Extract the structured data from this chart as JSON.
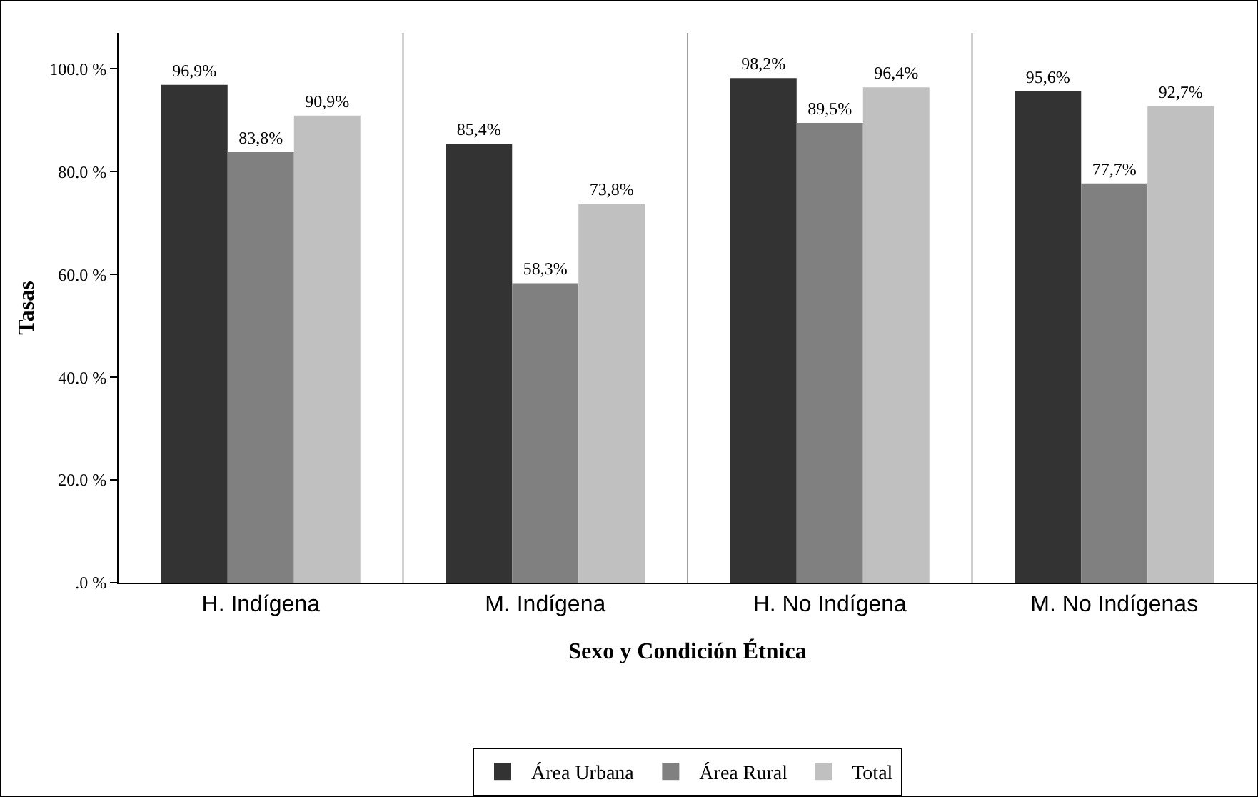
{
  "chart_data": {
    "type": "bar",
    "xlabel": "Sexo y Condición Étnica",
    "ylabel": "Tasas",
    "categories": [
      "H. Indígena",
      "M. Indígena",
      "H. No Indígena",
      "M. No Indígenas"
    ],
    "series": [
      {
        "name": "Área Urbana",
        "color": "#333333",
        "values": [
          96.9,
          85.4,
          98.2,
          95.6
        ],
        "value_labels": [
          "96,9%",
          "85,4%",
          "98,2%",
          "95,6%"
        ]
      },
      {
        "name": "Área Rural",
        "color": "#808080",
        "values": [
          83.8,
          58.3,
          89.5,
          77.7
        ],
        "value_labels": [
          "83,8%",
          "58,3%",
          "89,5%",
          "77,7%"
        ]
      },
      {
        "name": "Total",
        "color": "#c0c0c0",
        "values": [
          90.9,
          73.8,
          96.4,
          92.7
        ],
        "value_labels": [
          "90,9%",
          "73,8%",
          "96,4%",
          "92,7%"
        ]
      }
    ],
    "ylim": [
      0,
      107
    ],
    "yticks": [
      {
        "value": 0,
        "label": ".0 %"
      },
      {
        "value": 20,
        "label": "20.0 %"
      },
      {
        "value": 40,
        "label": "40.0 %"
      },
      {
        "value": 60,
        "label": "60.0 %"
      },
      {
        "value": 80,
        "label": "80.0 %"
      },
      {
        "value": 100,
        "label": "100.0 %"
      }
    ],
    "grid": "x",
    "legend": "bottom"
  }
}
